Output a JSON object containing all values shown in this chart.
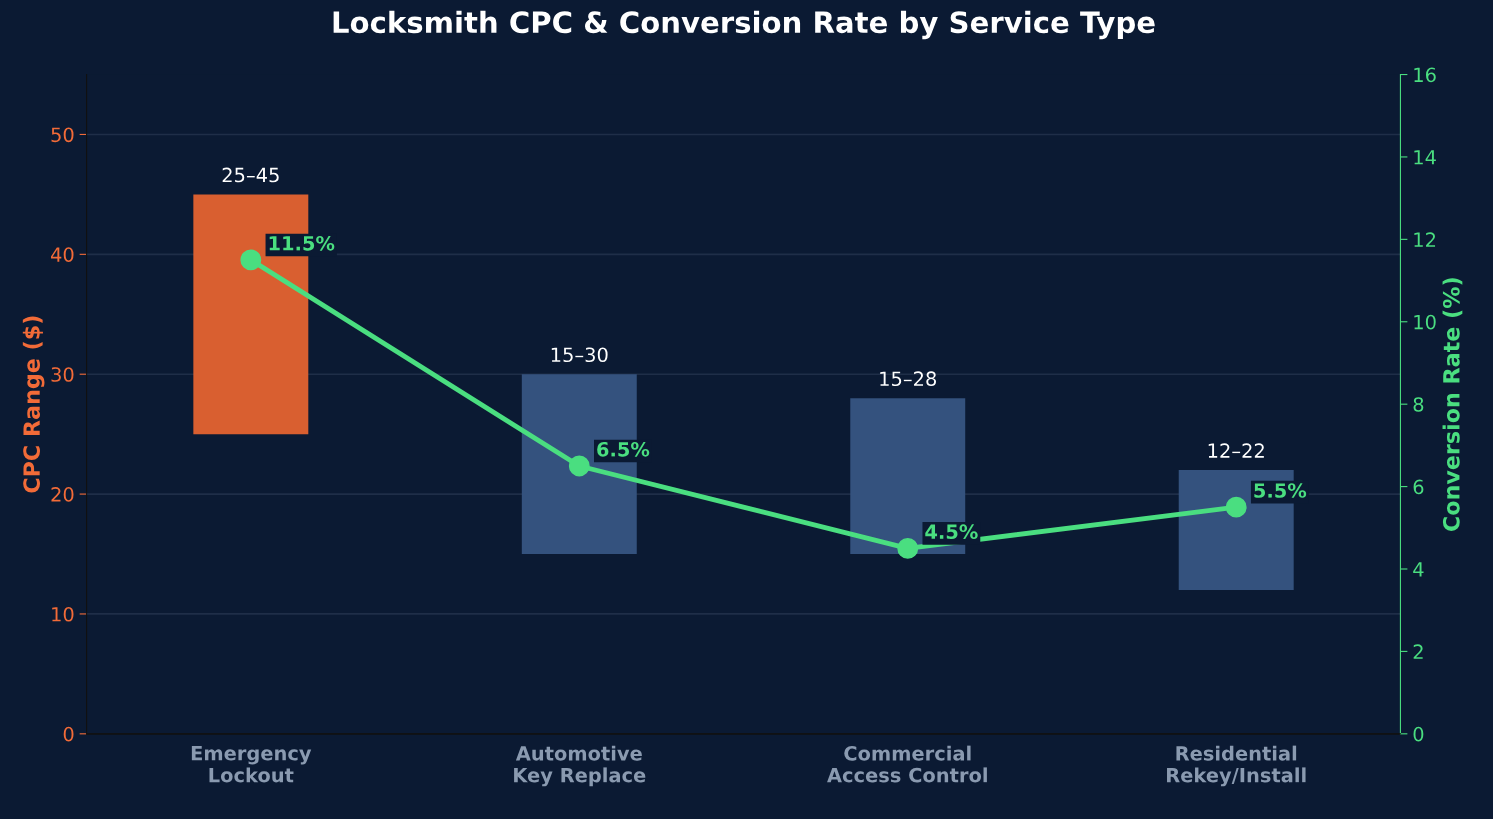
{
  "chart_data": {
    "type": "bar",
    "title": "Locksmith CPC & Conversion Rate by Service Type",
    "categories": [
      "Emergency\nLockout",
      "Automotive\nKey Replace",
      "Commercial\nAccess Control",
      "Residential\nRekey/Install"
    ],
    "ylabel": "CPC Range ($)",
    "y2label": "Conversion Rate (%)",
    "ylim": [
      0,
      55
    ],
    "yticks": [
      0,
      10,
      20,
      30,
      40,
      50
    ],
    "y2lim": [
      0,
      16
    ],
    "y2ticks": [
      0,
      2,
      4,
      6,
      8,
      10,
      12,
      14,
      16
    ],
    "grid": "y",
    "legend": false,
    "series": [
      {
        "base": [
          25,
          15,
          15,
          12
        ],
        "values": [
          20,
          15,
          13,
          10
        ],
        "colors": [
          "#d95f30",
          "#34527e",
          "#34527e",
          "#34527e"
        ],
        "value_labels": [
          "25–45",
          "15–30",
          "15–28",
          "12–22"
        ]
      },
      {
        "type": "line",
        "axis": "y2",
        "color": "#4ade80",
        "marker": "circle",
        "line_style": "solid",
        "values": [
          11.5,
          6.5,
          4.5,
          5.5
        ],
        "value_labels": [
          "11.5%",
          "6.5%",
          "4.5%",
          "5.5%"
        ]
      }
    ]
  }
}
